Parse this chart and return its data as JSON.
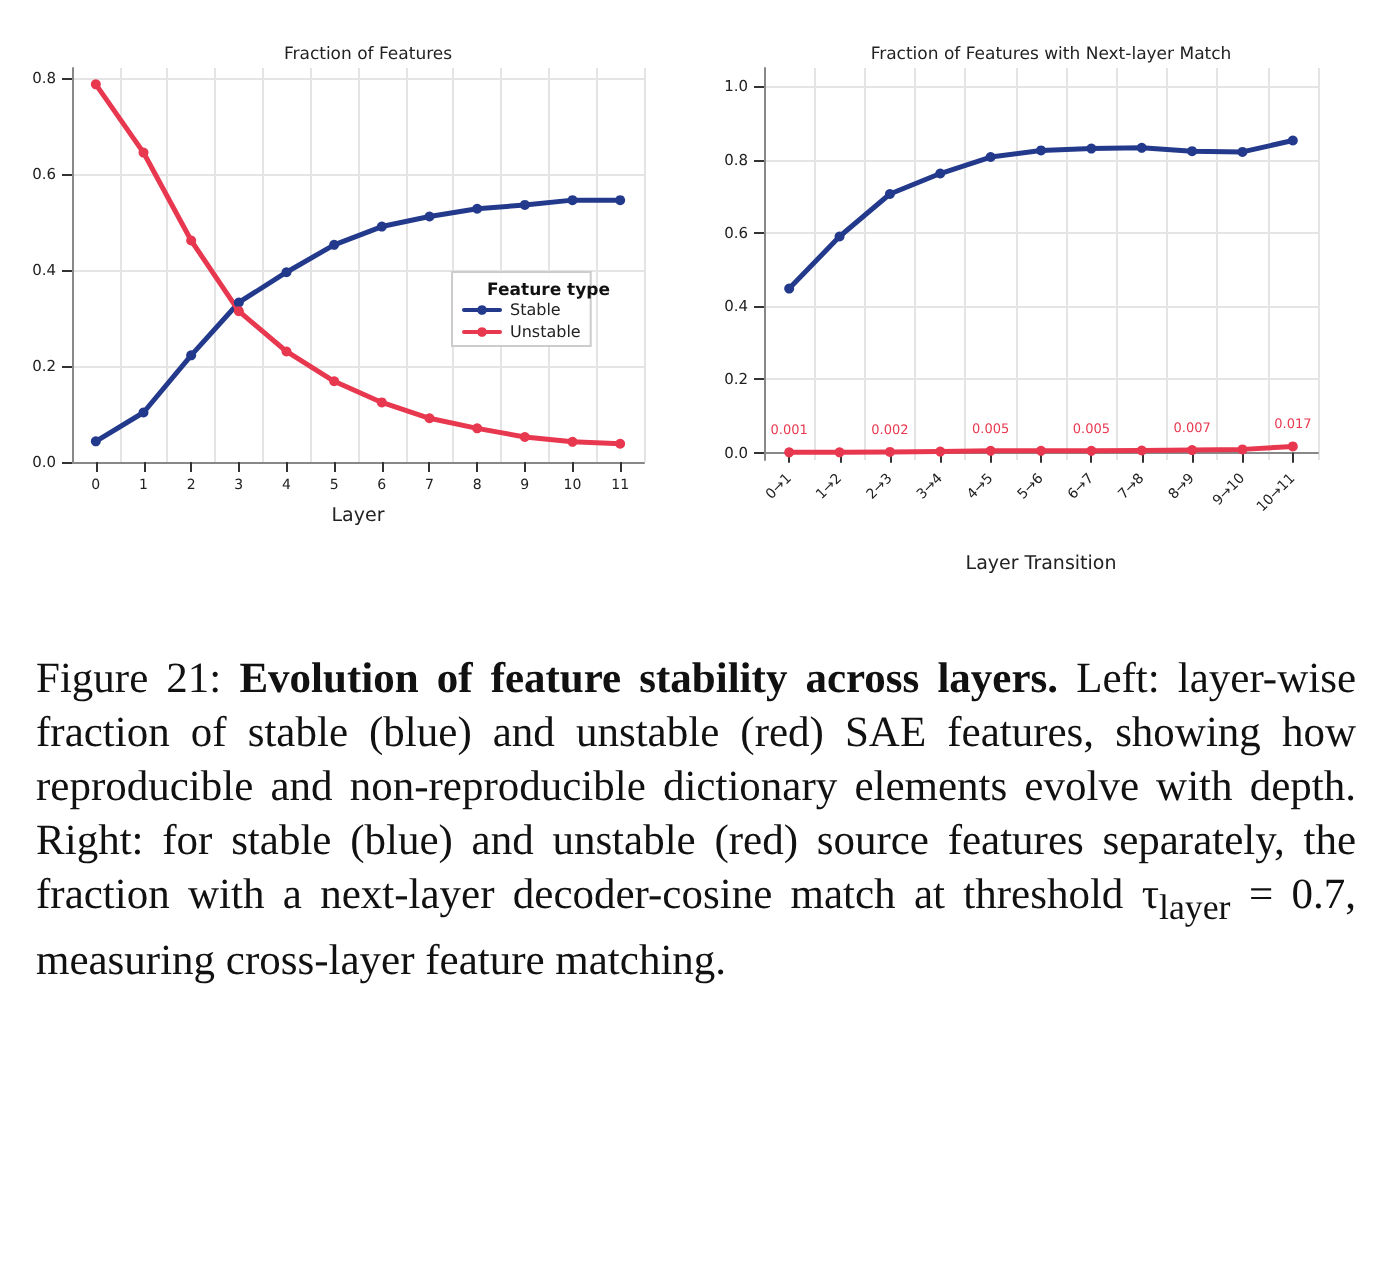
{
  "chart_data": [
    {
      "type": "line",
      "title": "Fraction of Features",
      "xlabel": "Layer",
      "categories": [
        "0",
        "1",
        "2",
        "3",
        "4",
        "5",
        "6",
        "7",
        "8",
        "9",
        "10",
        "11"
      ],
      "series": [
        {
          "name": "Stable",
          "color": "#233a8c",
          "values": [
            0.043,
            0.103,
            0.222,
            0.332,
            0.395,
            0.452,
            0.49,
            0.511,
            0.527,
            0.535,
            0.545,
            0.545
          ]
        },
        {
          "name": "Unstable",
          "color": "#e8384f",
          "values": [
            0.786,
            0.644,
            0.461,
            0.314,
            0.23,
            0.168,
            0.124,
            0.091,
            0.07,
            0.052,
            0.042,
            0.038
          ]
        }
      ],
      "ylim": [
        0,
        0.82
      ],
      "yticks": [
        {
          "value": 0,
          "label": "0.0"
        },
        {
          "value": 0.2,
          "label": "0.2"
        },
        {
          "value": 0.4,
          "label": "0.4"
        },
        {
          "value": 0.6,
          "label": "0.6"
        },
        {
          "value": 0.8,
          "label": "0.8"
        }
      ],
      "grid": true,
      "legend": "right",
      "legend_title": "Feature type",
      "marker": "circle",
      "line_style": "solid",
      "annotations": [
        "Figure 21:",
        "Evolution of feature stability across layers.",
        "Left: layer-wise fraction of stable (blue) and unstable (red) SAE features, showing how reproducible and non-reproducible dictionary elements evolve with depth. Right: for stable (blue) and unstable (red) source features separately, the fraction with a next-layer decoder-cosine match at threshold τ$_{layer}$ = 0.7, measuring cross-layer feature matching."
      ]
    },
    {
      "type": "line",
      "title": "Fraction of Features with Next-layer Match",
      "xlabel": "Layer Transition",
      "categories": [
        "0→1",
        "1→2",
        "2→3",
        "3→4",
        "4→5",
        "5→6",
        "6→7",
        "7→8",
        "8→9",
        "9→10",
        "10→11"
      ],
      "series": [
        {
          "color": "#233a8c",
          "values": [
            0.448,
            0.59,
            0.706,
            0.762,
            0.807,
            0.825,
            0.83,
            0.832,
            0.823,
            0.821,
            0.852
          ]
        },
        {
          "color": "#e8384f",
          "values": [
            0.001,
            0.001,
            0.002,
            0.003,
            0.005,
            0.005,
            0.005,
            0.006,
            0.007,
            0.009,
            0.017
          ],
          "value_labels": [
            "0.001",
            null,
            "0.002",
            null,
            "0.005",
            null,
            "0.005",
            null,
            "0.007",
            null,
            "0.017"
          ]
        }
      ],
      "ylim": [
        -0.02,
        1.05
      ],
      "yticks": [
        {
          "value": 0,
          "label": "0.0"
        },
        {
          "value": 0.2,
          "label": "0.2"
        },
        {
          "value": 0.4,
          "label": "0.4"
        },
        {
          "value": 0.6,
          "label": "0.6"
        },
        {
          "value": 0.8,
          "label": "0.8"
        },
        {
          "value": 1.0,
          "label": "1.0"
        }
      ],
      "grid": true,
      "marker": "circle",
      "line_style": "solid"
    }
  ]
}
